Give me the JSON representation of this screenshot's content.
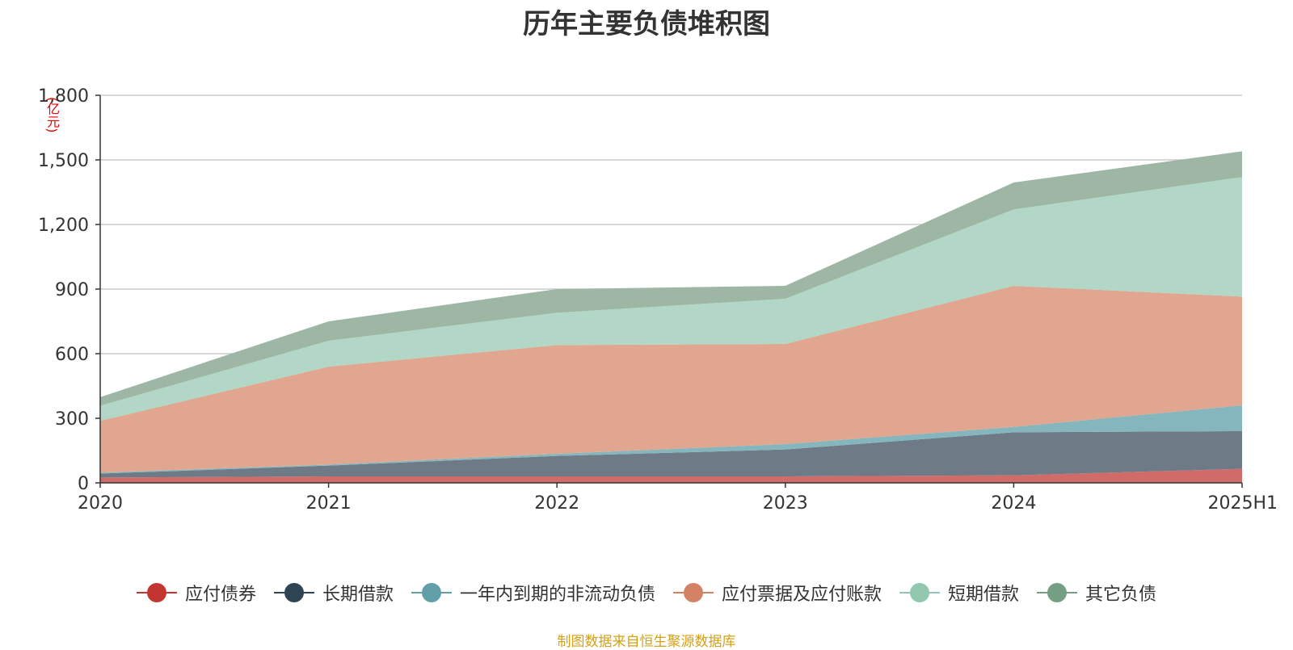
{
  "chart_data": {
    "type": "area",
    "stacked": true,
    "title": "历年主要负债堆积图",
    "unit_label": "(亿元)",
    "source": "制图数据来自恒生聚源数据库",
    "categories": [
      "2020",
      "2021",
      "2022",
      "2023",
      "2024",
      "2025H1"
    ],
    "ylim": [
      0,
      1800
    ],
    "yticks": [
      0,
      300,
      600,
      900,
      1200,
      1500,
      1800
    ],
    "ytick_labels": [
      "0",
      "300",
      "600",
      "900",
      "1,200",
      "1,500",
      "1,800"
    ],
    "grid": true,
    "legend_position": "bottom",
    "series": [
      {
        "name": "应付债券",
        "values": [
          25,
          30,
          30,
          30,
          35,
          65
        ],
        "color": "#c23531",
        "fill": "#d06b69"
      },
      {
        "name": "长期借款",
        "values": [
          18,
          50,
          95,
          125,
          200,
          175
        ],
        "color": "#2f4554",
        "fill": "#6e7b86"
      },
      {
        "name": "一年内到期的非流动负债",
        "values": [
          5,
          5,
          10,
          25,
          25,
          120
        ],
        "color": "#61a0a8",
        "fill": "#85b6bd"
      },
      {
        "name": "应付票据及应付账款",
        "values": [
          240,
          455,
          505,
          465,
          655,
          505
        ],
        "color": "#d48265",
        "fill": "#e0a690"
      },
      {
        "name": "短期借款",
        "values": [
          70,
          120,
          150,
          210,
          355,
          555
        ],
        "color": "#91c7ae",
        "fill": "#b2d7c6"
      },
      {
        "name": "其它负债",
        "values": [
          40,
          90,
          110,
          60,
          125,
          120
        ],
        "color": "#749f83",
        "fill": "#9db7a4"
      }
    ]
  }
}
